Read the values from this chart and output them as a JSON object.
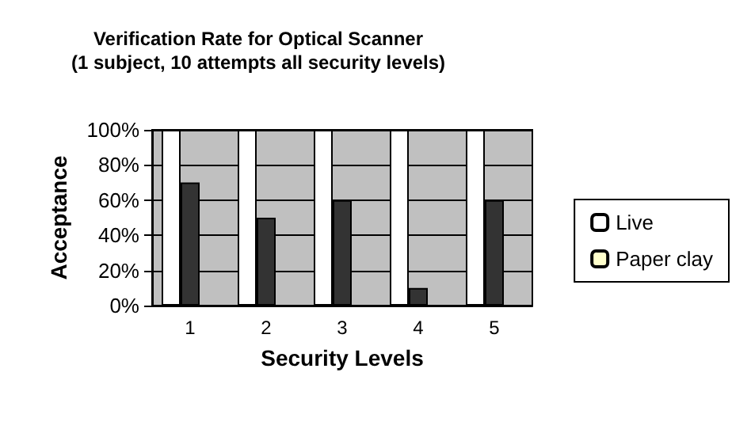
{
  "chart_data": {
    "type": "bar",
    "title": "Verification Rate for Optical Scanner\n(1 subject, 10 attempts all security levels)",
    "xlabel": "Security Levels",
    "ylabel": "Acceptance",
    "categories": [
      "1",
      "2",
      "3",
      "4",
      "5"
    ],
    "series": [
      {
        "name": "Live",
        "color": "#ffffff",
        "values": [
          100,
          100,
          100,
          100,
          100
        ]
      },
      {
        "color": "#333333",
        "values": [
          70,
          50,
          60,
          10,
          60
        ]
      },
      {
        "name": "Paper clay",
        "color": "#ffffcc",
        "values": [
          0,
          0,
          0,
          0,
          0
        ]
      }
    ],
    "ylim": [
      0,
      100
    ],
    "yticks": [
      {
        "value": 0,
        "label": "0%"
      },
      {
        "value": 20,
        "label": "20%"
      },
      {
        "value": 40,
        "label": "40%"
      },
      {
        "value": 60,
        "label": "60%"
      },
      {
        "value": 80,
        "label": "80%"
      },
      {
        "value": 100,
        "label": "100%"
      }
    ],
    "grid": "y",
    "legend": "right"
  }
}
